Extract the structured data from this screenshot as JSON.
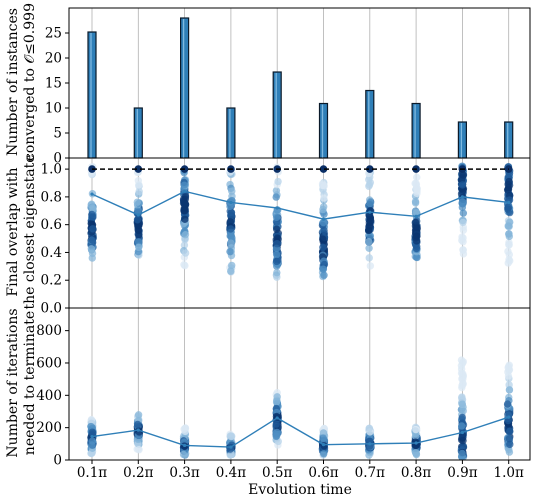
{
  "chart_data": [
    {
      "type": "bar",
      "ylabel_lines": [
        "Number of instances",
        "converged to 𝒪≤0.999"
      ],
      "categories": [
        "0.1π",
        "0.2π",
        "0.3π",
        "0.4π",
        "0.5π",
        "0.6π",
        "0.7π",
        "0.8π",
        "0.9π",
        "1.0π"
      ],
      "values": [
        25.2,
        10,
        28,
        10,
        17.2,
        10.9,
        13.5,
        10.9,
        7.2,
        7.2
      ],
      "ylim": [
        0,
        30
      ],
      "yticks": [
        "0",
        "5",
        "10",
        "15",
        "20",
        "25"
      ],
      "ytick_values": [
        0,
        5,
        10,
        15,
        20,
        25
      ],
      "bar_color": "#2f7fb8",
      "grid": "vertical"
    },
    {
      "type": "scatter",
      "ylabel_lines": [
        "Final overlap with",
        "the closest eigenstate"
      ],
      "x": [
        0.1,
        0.2,
        0.3,
        0.4,
        0.5,
        0.6,
        0.7,
        0.8,
        0.9,
        1.0
      ],
      "mean_line": [
        0.82,
        0.67,
        0.84,
        0.76,
        0.72,
        0.64,
        0.69,
        0.66,
        0.8,
        0.76
      ],
      "reference_line": 1.0,
      "ylim": [
        0,
        1.08
      ],
      "yticks": [
        "0.0",
        "0.2",
        "0.4",
        "0.6",
        "0.8",
        "1.0"
      ],
      "ytick_values": [
        0,
        0.2,
        0.4,
        0.6,
        0.8,
        1.0
      ],
      "point_ranges": [
        [
          0.35,
          1.02
        ],
        [
          0.38,
          1.02
        ],
        [
          0.3,
          1.02
        ],
        [
          0.25,
          1.02
        ],
        [
          0.2,
          1.02
        ],
        [
          0.2,
          1.0
        ],
        [
          0.3,
          1.0
        ],
        [
          0.35,
          0.98
        ],
        [
          0.38,
          1.02
        ],
        [
          0.3,
          1.02
        ]
      ],
      "point_centers": [
        0.58,
        0.58,
        0.75,
        0.62,
        0.5,
        0.45,
        0.62,
        0.55,
        0.88,
        0.85
      ],
      "color": "#2f7fb8",
      "grid": "vertical"
    },
    {
      "type": "scatter",
      "ylabel_lines": [
        "Number of iterations",
        "needed to terminate"
      ],
      "x": [
        0.1,
        0.2,
        0.3,
        0.4,
        0.5,
        0.6,
        0.7,
        0.8,
        0.9,
        1.0
      ],
      "x_tick_labels": [
        "0.1π",
        "0.2π",
        "0.3π",
        "0.4π",
        "0.5π",
        "0.6π",
        "0.7π",
        "0.8π",
        "0.9π",
        "1.0π"
      ],
      "xlabel": "Evolution time",
      "mean_line": [
        145,
        185,
        90,
        80,
        260,
        95,
        100,
        105,
        170,
        265
      ],
      "ylim": [
        0,
        940
      ],
      "yticks": [
        "0",
        "200",
        "400",
        "600",
        "800"
      ],
      "ytick_values": [
        0,
        200,
        400,
        600,
        800
      ],
      "point_ranges": [
        [
          40,
          260
        ],
        [
          60,
          280
        ],
        [
          30,
          200
        ],
        [
          30,
          160
        ],
        [
          80,
          420
        ],
        [
          30,
          200
        ],
        [
          30,
          200
        ],
        [
          30,
          220
        ],
        [
          20,
          620
        ],
        [
          40,
          600
        ]
      ],
      "point_centers": [
        140,
        180,
        90,
        80,
        240,
        90,
        100,
        100,
        130,
        220
      ],
      "color": "#2f7fb8",
      "grid": "vertical"
    }
  ]
}
